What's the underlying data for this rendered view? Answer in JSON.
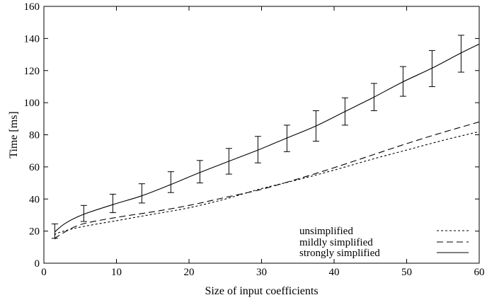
{
  "chart_data": {
    "type": "line",
    "title": "",
    "xlabel": "Size of input coefficients",
    "ylabel": "Time [ms]",
    "xlim": [
      0,
      60
    ],
    "ylim": [
      0,
      160
    ],
    "x_ticks": [
      0,
      10,
      20,
      30,
      40,
      50,
      60
    ],
    "y_ticks": [
      0,
      20,
      40,
      60,
      80,
      100,
      120,
      140,
      160
    ],
    "grid": false,
    "legend_position": "bottom-right",
    "series": [
      {
        "name": "unsimplified",
        "dash": "short-dash",
        "x": [
          1.5,
          2,
          5,
          10,
          15,
          20,
          25,
          30,
          35,
          40,
          45,
          50,
          55,
          60
        ],
        "y": [
          17.5,
          19,
          22.5,
          26.5,
          30.5,
          34.5,
          40,
          46.5,
          52,
          58,
          64.5,
          70.5,
          76.5,
          82
        ]
      },
      {
        "name": "mildly simplified",
        "dash": "long-dash",
        "x": [
          1.5,
          2,
          5,
          10,
          15,
          20,
          25,
          30,
          35,
          40,
          45,
          50,
          55,
          60
        ],
        "y": [
          15,
          17,
          24,
          28.5,
          32,
          36,
          41,
          46,
          52.5,
          59.5,
          67,
          74.5,
          81.5,
          88
        ]
      },
      {
        "name": "strongly simplified",
        "dash": "solid",
        "x": [
          1.5,
          3,
          5.5,
          9.5,
          13.5,
          17.5,
          21.5,
          25.5,
          29.5,
          33.5,
          37.5,
          41.5,
          45.5,
          49.5,
          53.5,
          57.5,
          60
        ],
        "y": [
          19.5,
          25,
          30.5,
          36.5,
          42,
          49,
          56.5,
          63.5,
          70.5,
          78,
          85.5,
          94.5,
          103.5,
          113,
          121.5,
          131,
          136.5
        ]
      }
    ],
    "error_bars": {
      "series": "strongly simplified",
      "x": [
        1.5,
        5.5,
        9.5,
        13.5,
        17.5,
        21.5,
        25.5,
        29.5,
        33.5,
        37.5,
        41.5,
        45.5,
        49.5,
        53.5,
        57.5
      ],
      "low": [
        15.5,
        26,
        31.5,
        37.5,
        44,
        50,
        55.5,
        62.5,
        69.5,
        76,
        86,
        95,
        104,
        110,
        119
      ],
      "high": [
        24.5,
        36,
        43,
        49.5,
        57,
        64,
        71.5,
        79,
        86,
        95,
        103,
        112,
        122.5,
        132.5,
        142
      ]
    }
  }
}
